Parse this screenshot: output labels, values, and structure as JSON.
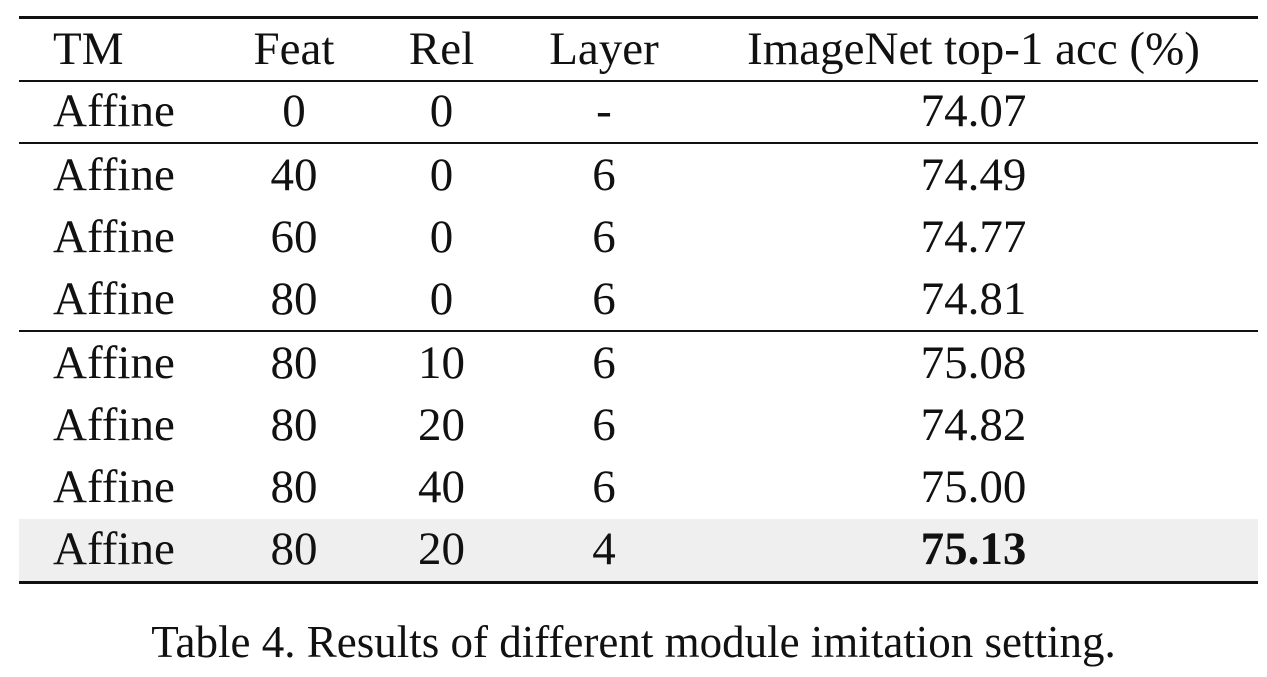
{
  "table": {
    "headers": [
      "TM",
      "Feat",
      "Rel",
      "Layer",
      "ImageNet top-1 acc (%)"
    ],
    "groups": [
      [
        {
          "tm": "Affine",
          "feat": "0",
          "rel": "0",
          "layer": "-",
          "acc": "74.07"
        }
      ],
      [
        {
          "tm": "Affine",
          "feat": "40",
          "rel": "0",
          "layer": "6",
          "acc": "74.49"
        },
        {
          "tm": "Affine",
          "feat": "60",
          "rel": "0",
          "layer": "6",
          "acc": "74.77"
        },
        {
          "tm": "Affine",
          "feat": "80",
          "rel": "0",
          "layer": "6",
          "acc": "74.81"
        }
      ],
      [
        {
          "tm": "Affine",
          "feat": "80",
          "rel": "10",
          "layer": "6",
          "acc": "75.08"
        },
        {
          "tm": "Affine",
          "feat": "80",
          "rel": "20",
          "layer": "6",
          "acc": "74.82"
        },
        {
          "tm": "Affine",
          "feat": "80",
          "rel": "40",
          "layer": "6",
          "acc": "75.00"
        },
        {
          "tm": "Affine",
          "feat": "80",
          "rel": "20",
          "layer": "4",
          "acc": "75.13",
          "highlight": true,
          "bold_acc": true
        }
      ]
    ]
  },
  "caption": "Table 4. Results of different module imitation setting."
}
